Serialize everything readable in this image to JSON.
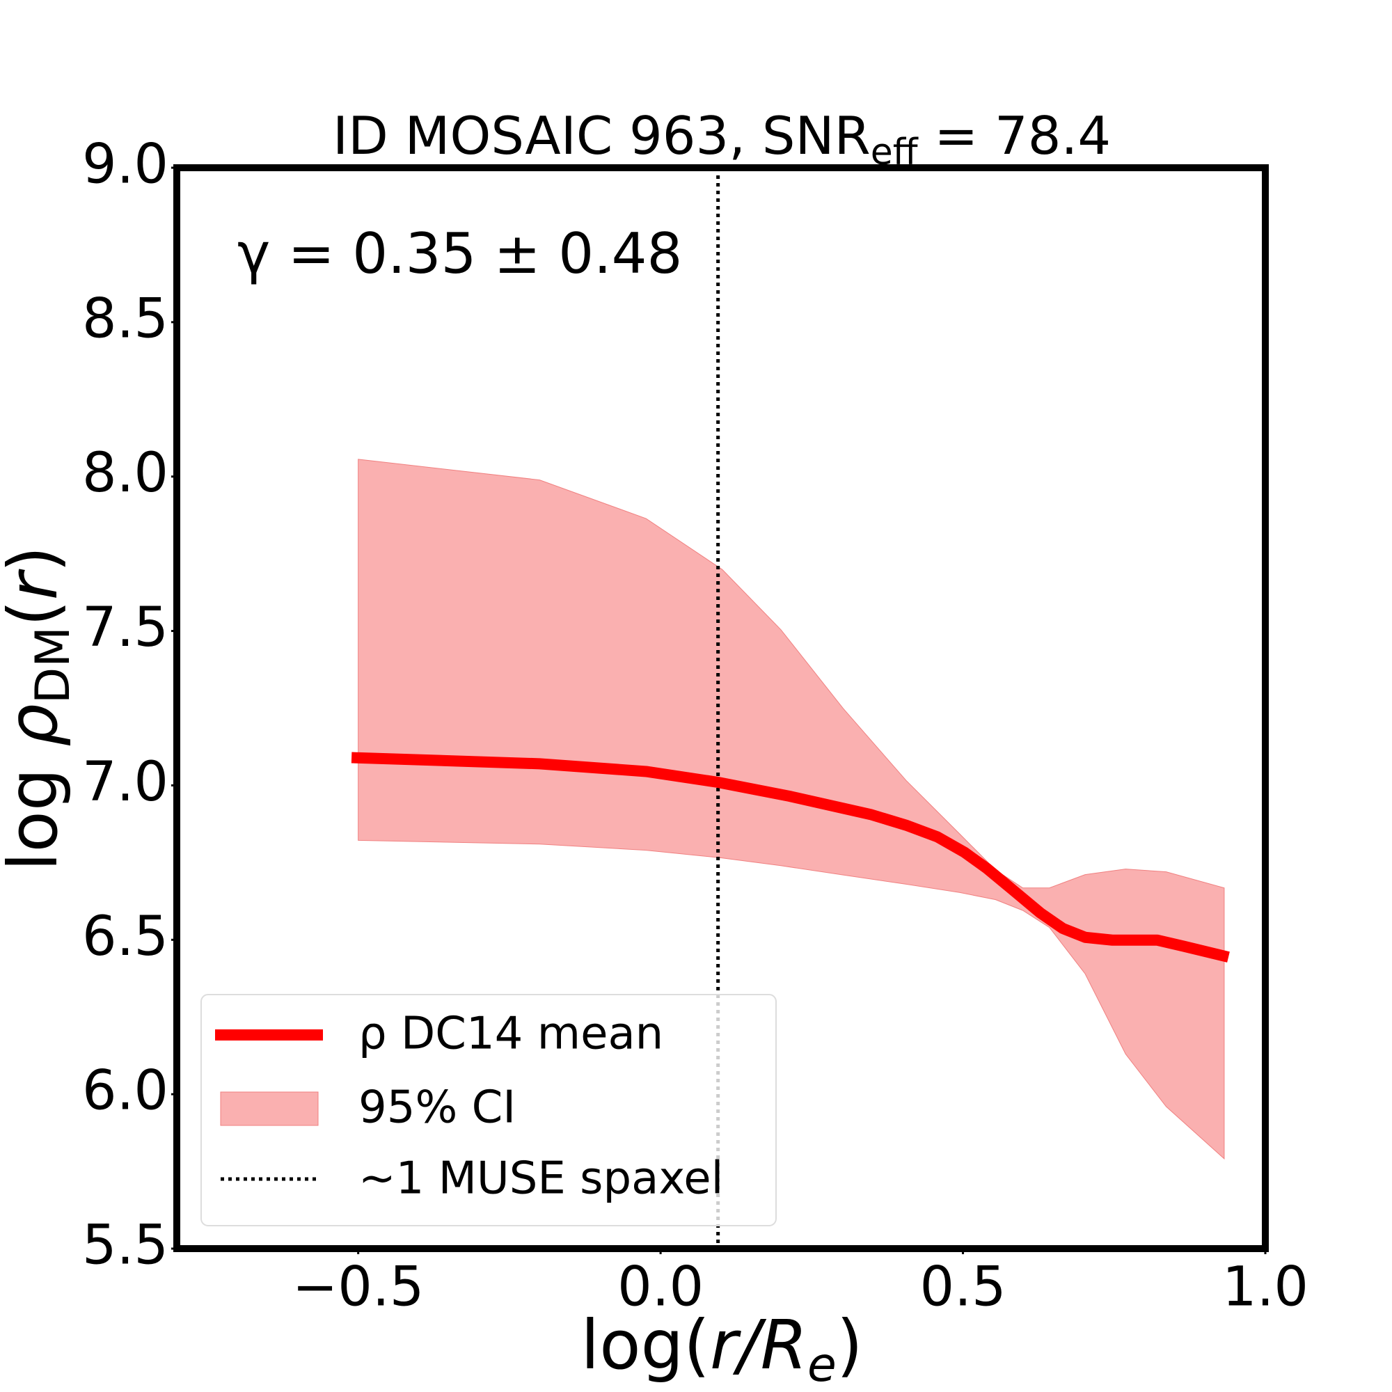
{
  "chart_data": {
    "type": "line",
    "title": {
      "main": "ID MOSAIC 963, SNR",
      "sub": "eff",
      "tail": " = 78.4"
    },
    "xlabel": {
      "main": "log(",
      "italic": "r/R",
      "sub": "e",
      "tail": ")"
    },
    "ylabel": {
      "main": "log ",
      "rho": "ρ",
      "sub": "DM",
      "tail": "(",
      "italic": "r",
      "close": ")"
    },
    "annotation": "γ = 0.35 ± 0.48",
    "xlim": [
      -0.8,
      1.0
    ],
    "ylim": [
      5.5,
      9.0
    ],
    "xticks": [
      {
        "value": -0.5,
        "label": "−0.5"
      },
      {
        "value": 0,
        "label": "0.0"
      },
      {
        "value": 0.5,
        "label": "0.5"
      },
      {
        "value": 1,
        "label": "1.0"
      }
    ],
    "yticks": [
      5.5,
      {
        "value": 6,
        "label": "6.0"
      },
      6.5,
      {
        "value": 7,
        "label": "7.0"
      },
      7.5,
      {
        "value": 8,
        "label": "8.0"
      },
      8.5,
      {
        "value": 9,
        "label": "9.0"
      }
    ],
    "series": [
      {
        "name": "ρ DC14 mean",
        "color": "#ff0000",
        "x": [
          -0.511,
          -0.2,
          -0.024,
          0.095,
          0.213,
          0.347,
          0.406,
          0.458,
          0.502,
          0.539,
          0.584,
          0.628,
          0.665,
          0.702,
          0.747,
          0.821,
          0.865,
          0.939
        ],
        "values": [
          7.09,
          7.07,
          7.045,
          7.01,
          6.965,
          6.906,
          6.871,
          6.833,
          6.784,
          6.732,
          6.659,
          6.587,
          6.537,
          6.508,
          6.499,
          6.499,
          6.479,
          6.444
        ]
      }
    ],
    "band": {
      "name": "95% CI",
      "color": "#fab0b0",
      "x": [
        -0.5,
        -0.2,
        -0.024,
        0.102,
        0.199,
        0.302,
        0.406,
        0.495,
        0.554,
        0.599,
        0.643,
        0.702,
        0.769,
        0.836,
        0.932
      ],
      "upper": [
        8.056,
        7.989,
        7.864,
        7.699,
        7.504,
        7.249,
        7.016,
        6.842,
        6.726,
        6.668,
        6.668,
        6.711,
        6.729,
        6.72,
        6.668
      ],
      "lower": [
        6.822,
        6.81,
        6.79,
        6.765,
        6.74,
        6.71,
        6.68,
        6.653,
        6.63,
        6.595,
        6.54,
        6.39,
        6.13,
        5.96,
        5.791
      ]
    },
    "vline": {
      "name": "~1 MUSE spaxel",
      "x": 0.095,
      "color": "#000000"
    },
    "legend": "lower left"
  }
}
